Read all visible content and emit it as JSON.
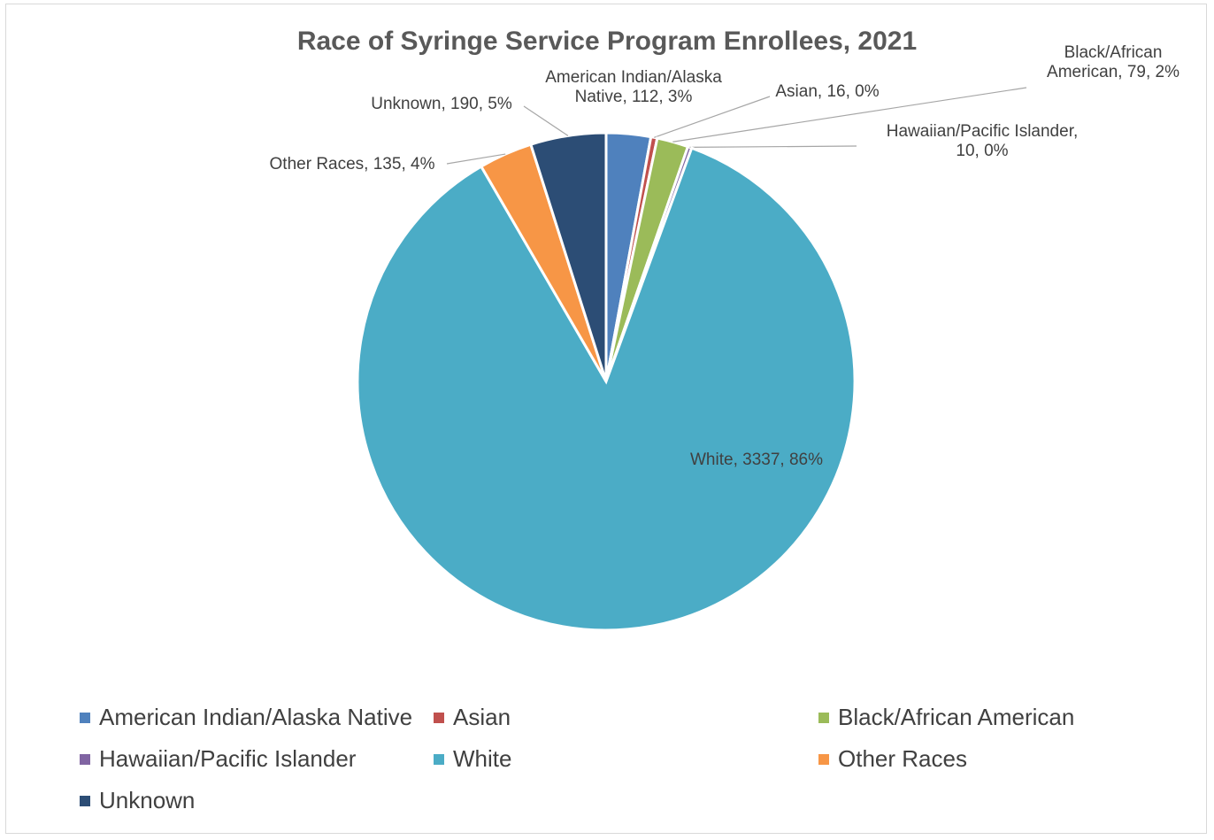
{
  "chart_data": {
    "type": "pie",
    "title": "Race of Syringe Service Program Enrollees, 2021",
    "slices": [
      {
        "name": "American Indian/Alaska Native",
        "value": 112,
        "percent": "3%",
        "label_lines": [
          "American Indian/Alaska",
          "Native, 112, 3%"
        ],
        "color": "#4F81BD"
      },
      {
        "name": "Asian",
        "value": 16,
        "percent": "0%",
        "label_lines": [
          "Asian, 16, 0%"
        ],
        "color": "#C0504D"
      },
      {
        "name": "Black/African American",
        "value": 79,
        "percent": "2%",
        "label_lines": [
          "Black/African",
          "American, 79, 2%"
        ],
        "color": "#9BBB59"
      },
      {
        "name": "Hawaiian/Pacific Islander",
        "value": 10,
        "percent": "0%",
        "label_lines": [
          "Hawaiian/Pacific Islander,",
          "10, 0%"
        ],
        "color": "#8064A2"
      },
      {
        "name": "White",
        "value": 3337,
        "percent": "86%",
        "label_lines": [
          "White, 3337, 86%"
        ],
        "color": "#4BACC6"
      },
      {
        "name": "Other Races",
        "value": 135,
        "percent": "4%",
        "label_lines": [
          "Other Races, 135, 4%"
        ],
        "color": "#F79646"
      },
      {
        "name": "Unknown",
        "value": 190,
        "percent": "5%",
        "label_lines": [
          "Unknown, 190, 5%"
        ],
        "color": "#2C4D75"
      }
    ],
    "legend_position": "bottom"
  }
}
